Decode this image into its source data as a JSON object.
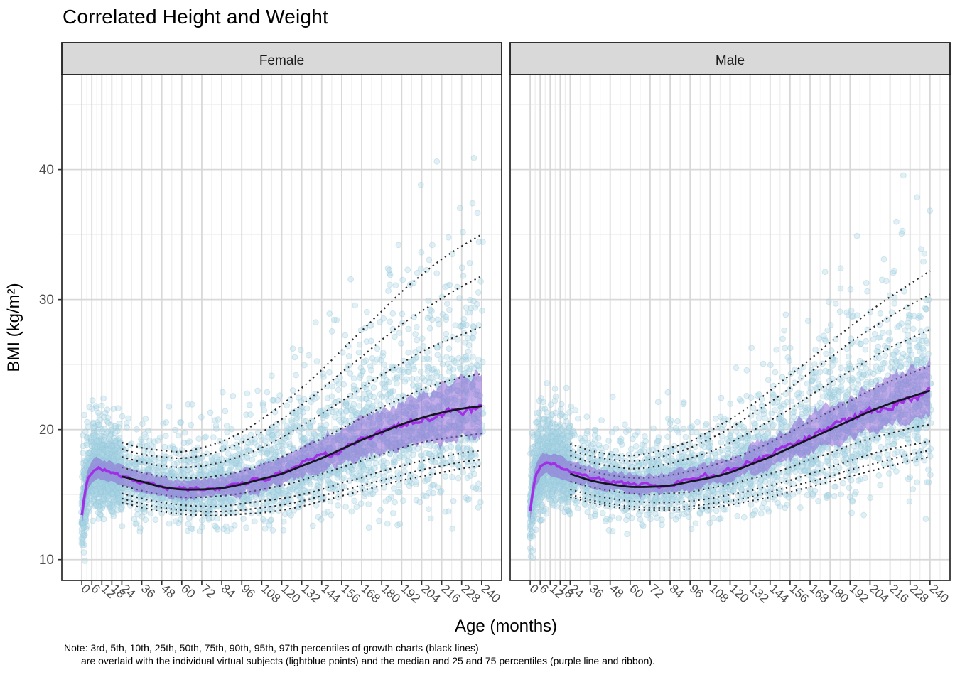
{
  "title": "Correlated Height and Weight",
  "note_line1": "Note: 3rd, 5th, 10th, 25th, 50th, 75th, 90th, 95th, 97th percentiles of growth charts (black lines)",
  "note_line2": "are overlaid with the individual virtual subjects (lightblue points) and the median and 25 and 75 percentiles (purple line and ribbon).",
  "chart_data": {
    "type": "scatter",
    "title": "Correlated Height and Weight",
    "xlabel": "Age (months)",
    "ylabel": "BMI (kg/m²)",
    "grid": true,
    "legend": "none",
    "facets": [
      {
        "key": "female",
        "label": "Female"
      },
      {
        "key": "male",
        "label": "Male"
      }
    ],
    "x_breaks": [
      0,
      6,
      12,
      18,
      24,
      36,
      48,
      60,
      72,
      84,
      96,
      108,
      120,
      132,
      144,
      156,
      168,
      180,
      192,
      204,
      216,
      228,
      240
    ],
    "y_breaks": [
      10,
      20,
      30,
      40
    ],
    "y_minor_breaks": [
      15,
      25,
      35,
      45
    ],
    "xlim": [
      -12,
      252
    ],
    "ylim": [
      8.4,
      47.3
    ],
    "growth_percentile_labels": [
      "3rd",
      "5th",
      "10th",
      "25th",
      "50th",
      "75th",
      "90th",
      "95th",
      "97th"
    ],
    "growth_months": [
      24,
      36,
      48,
      60,
      72,
      84,
      96,
      108,
      120,
      132,
      144,
      156,
      168,
      180,
      192,
      204,
      216,
      228,
      240
    ],
    "growth_percentiles": {
      "female": {
        "p3": [
          14.4,
          14.0,
          13.7,
          13.5,
          13.4,
          13.4,
          13.5,
          13.6,
          13.8,
          14.1,
          14.5,
          14.9,
          15.3,
          15.7,
          16.1,
          16.4,
          16.7,
          17.0,
          17.2
        ],
        "p5": [
          14.7,
          14.3,
          14.0,
          13.8,
          13.7,
          13.7,
          13.8,
          14.0,
          14.2,
          14.5,
          14.9,
          15.3,
          15.7,
          16.1,
          16.5,
          16.9,
          17.2,
          17.5,
          17.7
        ],
        "p10": [
          15.1,
          14.7,
          14.4,
          14.2,
          14.1,
          14.1,
          14.3,
          14.5,
          14.7,
          15.0,
          15.4,
          15.9,
          16.3,
          16.8,
          17.2,
          17.6,
          17.9,
          18.2,
          18.4
        ],
        "p25": [
          15.7,
          15.3,
          15.0,
          14.8,
          14.8,
          14.9,
          15.1,
          15.4,
          15.7,
          16.1,
          16.6,
          17.1,
          17.6,
          18.1,
          18.6,
          19.0,
          19.3,
          19.5,
          19.7
        ],
        "p50": [
          16.4,
          16.0,
          15.6,
          15.4,
          15.4,
          15.5,
          15.8,
          16.2,
          16.6,
          17.2,
          17.8,
          18.5,
          19.2,
          19.8,
          20.4,
          20.9,
          21.3,
          21.6,
          21.8
        ],
        "p75": [
          17.1,
          16.7,
          16.4,
          16.3,
          16.3,
          16.5,
          16.8,
          17.3,
          17.9,
          18.6,
          19.3,
          20.1,
          20.9,
          21.7,
          22.4,
          23.1,
          23.6,
          24.0,
          24.3
        ],
        "p90": [
          17.9,
          17.5,
          17.2,
          17.1,
          17.2,
          17.5,
          18.0,
          18.6,
          19.4,
          20.3,
          21.2,
          22.2,
          23.2,
          24.2,
          25.1,
          26.0,
          26.7,
          27.3,
          27.9
        ],
        "p95": [
          18.5,
          18.1,
          17.9,
          17.8,
          18.0,
          18.4,
          19.0,
          19.8,
          20.8,
          21.9,
          23.1,
          24.4,
          25.6,
          26.9,
          28.1,
          29.1,
          30.1,
          31.0,
          31.8
        ],
        "p97": [
          19.0,
          18.6,
          18.4,
          18.3,
          18.6,
          19.1,
          19.8,
          20.8,
          21.9,
          23.2,
          24.6,
          26.1,
          27.6,
          29.1,
          30.6,
          31.9,
          33.1,
          34.1,
          35.0
        ]
      },
      "male": {
        "p3": [
          14.8,
          14.4,
          14.1,
          13.9,
          13.8,
          13.8,
          13.9,
          14.0,
          14.2,
          14.5,
          14.8,
          15.2,
          15.6,
          16.0,
          16.4,
          16.8,
          17.2,
          17.6,
          17.9
        ],
        "p5": [
          15.0,
          14.6,
          14.3,
          14.1,
          14.0,
          14.0,
          14.1,
          14.3,
          14.5,
          14.8,
          15.2,
          15.6,
          16.0,
          16.4,
          16.9,
          17.3,
          17.7,
          18.1,
          18.4
        ],
        "p10": [
          15.4,
          15.0,
          14.7,
          14.5,
          14.4,
          14.4,
          14.5,
          14.7,
          15.0,
          15.3,
          15.7,
          16.1,
          16.6,
          17.1,
          17.6,
          18.1,
          18.5,
          18.8,
          19.1
        ],
        "p25": [
          16.0,
          15.6,
          15.3,
          15.1,
          15.0,
          15.1,
          15.2,
          15.5,
          15.8,
          16.2,
          16.6,
          17.1,
          17.7,
          18.2,
          18.8,
          19.3,
          19.7,
          20.1,
          20.4
        ],
        "p50": [
          16.6,
          16.1,
          15.8,
          15.6,
          15.6,
          15.7,
          16.0,
          16.3,
          16.7,
          17.3,
          17.9,
          18.6,
          19.3,
          20.0,
          20.7,
          21.4,
          22.0,
          22.5,
          23.0
        ],
        "p75": [
          17.3,
          16.8,
          16.5,
          16.3,
          16.3,
          16.5,
          16.8,
          17.2,
          17.7,
          18.3,
          19.0,
          19.8,
          20.6,
          21.4,
          22.2,
          23.0,
          23.7,
          24.3,
          24.9
        ],
        "p90": [
          18.0,
          17.5,
          17.2,
          17.0,
          17.1,
          17.4,
          17.8,
          18.3,
          19.0,
          19.8,
          20.7,
          21.6,
          22.6,
          23.6,
          24.5,
          25.4,
          26.3,
          27.0,
          27.7
        ],
        "p95": [
          18.4,
          18.0,
          17.7,
          17.6,
          17.7,
          18.1,
          18.6,
          19.3,
          20.1,
          21.1,
          22.1,
          23.2,
          24.4,
          25.5,
          26.7,
          27.7,
          28.7,
          29.6,
          30.4
        ],
        "p97": [
          18.9,
          18.4,
          18.1,
          18.0,
          18.2,
          18.6,
          19.1,
          19.9,
          20.8,
          21.8,
          23.0,
          24.2,
          25.4,
          26.7,
          27.9,
          29.1,
          30.2,
          31.2,
          32.2
        ]
      }
    },
    "subjects_months": [
      0,
      2,
      4,
      7,
      10,
      14,
      18,
      24,
      36,
      48,
      60,
      72,
      84,
      96,
      120,
      144,
      168,
      192,
      216,
      240
    ],
    "subjects": {
      "female": {
        "median": [
          13.4,
          15.3,
          16.3,
          16.9,
          17.0,
          16.9,
          16.7,
          16.4,
          15.9,
          15.6,
          15.4,
          15.4,
          15.5,
          15.8,
          16.7,
          17.9,
          19.2,
          20.3,
          21.1,
          21.7
        ],
        "q25": [
          12.6,
          14.5,
          15.5,
          16.1,
          16.2,
          16.1,
          15.9,
          15.6,
          15.1,
          14.9,
          14.7,
          14.7,
          14.8,
          15.0,
          15.8,
          16.8,
          17.8,
          18.6,
          19.2,
          19.6
        ],
        "q75": [
          14.2,
          16.1,
          17.1,
          17.7,
          17.8,
          17.7,
          17.5,
          17.2,
          16.7,
          16.4,
          16.2,
          16.2,
          16.4,
          16.8,
          17.9,
          19.3,
          20.9,
          22.3,
          23.5,
          24.4
        ]
      },
      "male": {
        "median": [
          13.8,
          15.7,
          16.7,
          17.3,
          17.4,
          17.3,
          17.1,
          16.8,
          16.3,
          16.0,
          15.8,
          15.7,
          15.8,
          16.1,
          16.9,
          18.1,
          19.5,
          20.8,
          21.9,
          22.9
        ],
        "q25": [
          13.0,
          14.9,
          15.9,
          16.5,
          16.6,
          16.5,
          16.3,
          16.0,
          15.5,
          15.3,
          15.1,
          15.1,
          15.2,
          15.4,
          16.1,
          17.1,
          18.2,
          19.3,
          20.3,
          21.0
        ],
        "q75": [
          14.5,
          16.5,
          17.5,
          18.1,
          18.2,
          18.1,
          17.9,
          17.6,
          17.1,
          16.8,
          16.6,
          16.6,
          16.7,
          17.0,
          17.9,
          19.4,
          21.0,
          22.6,
          24.0,
          25.2
        ]
      }
    },
    "scatter": {
      "n_per_facet": 4200,
      "seed": 42,
      "alpha": 0.38,
      "radius": 3.9,
      "age_range_months": [
        0,
        240
      ]
    },
    "colors": {
      "point": "#ADD8E6",
      "point_stroke": "#8FC3DA",
      "ribbon": "#8B5FD4",
      "median_line": "#A228E8",
      "growth_solid_line": "#15151F",
      "growth_dotted_line": "#2D2D2D",
      "grid_major": "#D8D8D8",
      "grid_minor": "#EDEDED",
      "strip_bg": "#D9D9D9",
      "panel_border": "#333333",
      "tick_label": "#4D4D4D"
    }
  }
}
